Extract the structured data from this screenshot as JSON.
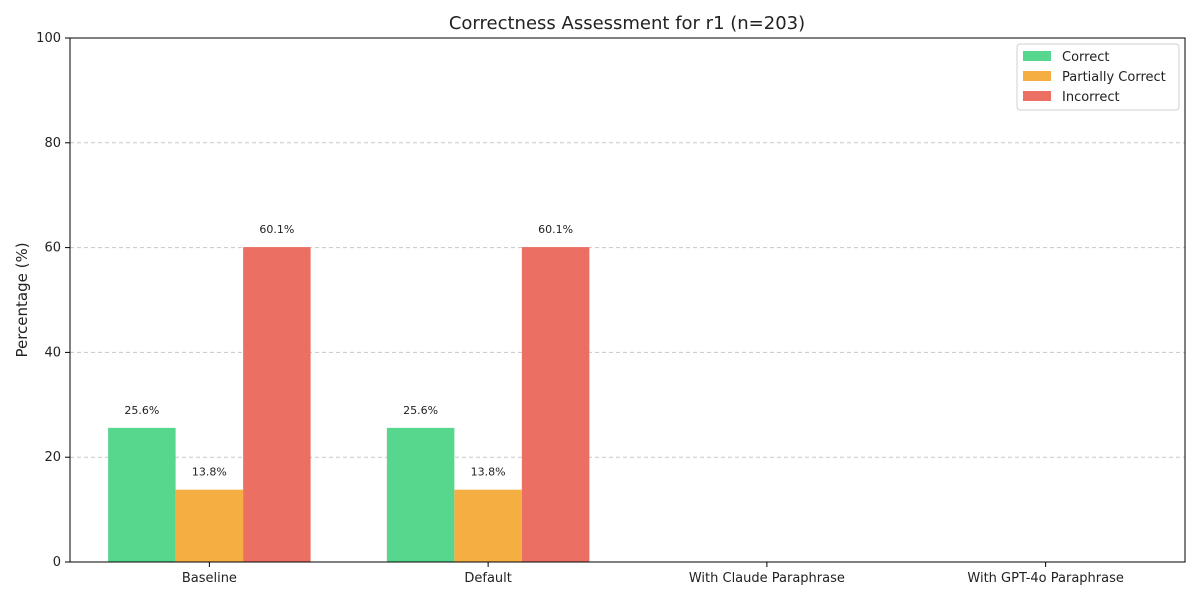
{
  "chart_data": {
    "type": "bar",
    "title": "Correctness Assessment for r1 (n=203)",
    "xlabel": "",
    "ylabel": "Percentage (%)",
    "ylim": [
      0,
      100
    ],
    "yticks": [
      "0",
      "20",
      "40",
      "60",
      "80",
      "100"
    ],
    "categories": [
      "Baseline",
      "Default",
      "With Claude Paraphrase",
      "With GPT-4o Paraphrase"
    ],
    "series": [
      {
        "name": "Correct",
        "color": "#57d68d",
        "values": [
          25.6,
          25.6,
          0,
          0
        ],
        "labels": [
          "25.6%",
          "25.6%",
          "",
          ""
        ]
      },
      {
        "name": "Partially Correct",
        "color": "#f5ae42",
        "values": [
          13.8,
          13.8,
          0,
          0
        ],
        "labels": [
          "13.8%",
          "13.8%",
          "",
          ""
        ]
      },
      {
        "name": "Incorrect",
        "color": "#eb7063",
        "values": [
          60.1,
          60.1,
          0,
          0
        ],
        "labels": [
          "60.1%",
          "60.1%",
          "",
          ""
        ]
      }
    ],
    "grid": "horizontal-dashed",
    "legend": "top-right"
  }
}
